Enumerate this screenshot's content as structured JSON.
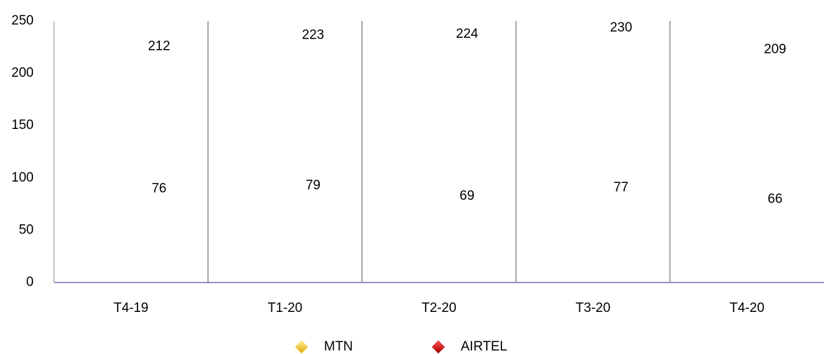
{
  "chart_data": {
    "type": "line",
    "categories": [
      "T4-19",
      "T1-20",
      "T2-20",
      "T3-20",
      "T4-20"
    ],
    "series": [
      {
        "name": "MTN",
        "color": "#f5c400",
        "values": [
          212,
          223,
          224,
          230,
          209
        ]
      },
      {
        "name": "AIRTEL",
        "color": "#c00000",
        "values": [
          76,
          79,
          69,
          77,
          66
        ]
      }
    ],
    "ylim": [
      0,
      250
    ],
    "yticks": [
      0,
      50,
      100,
      150,
      200,
      250
    ],
    "legend": "bottom"
  }
}
